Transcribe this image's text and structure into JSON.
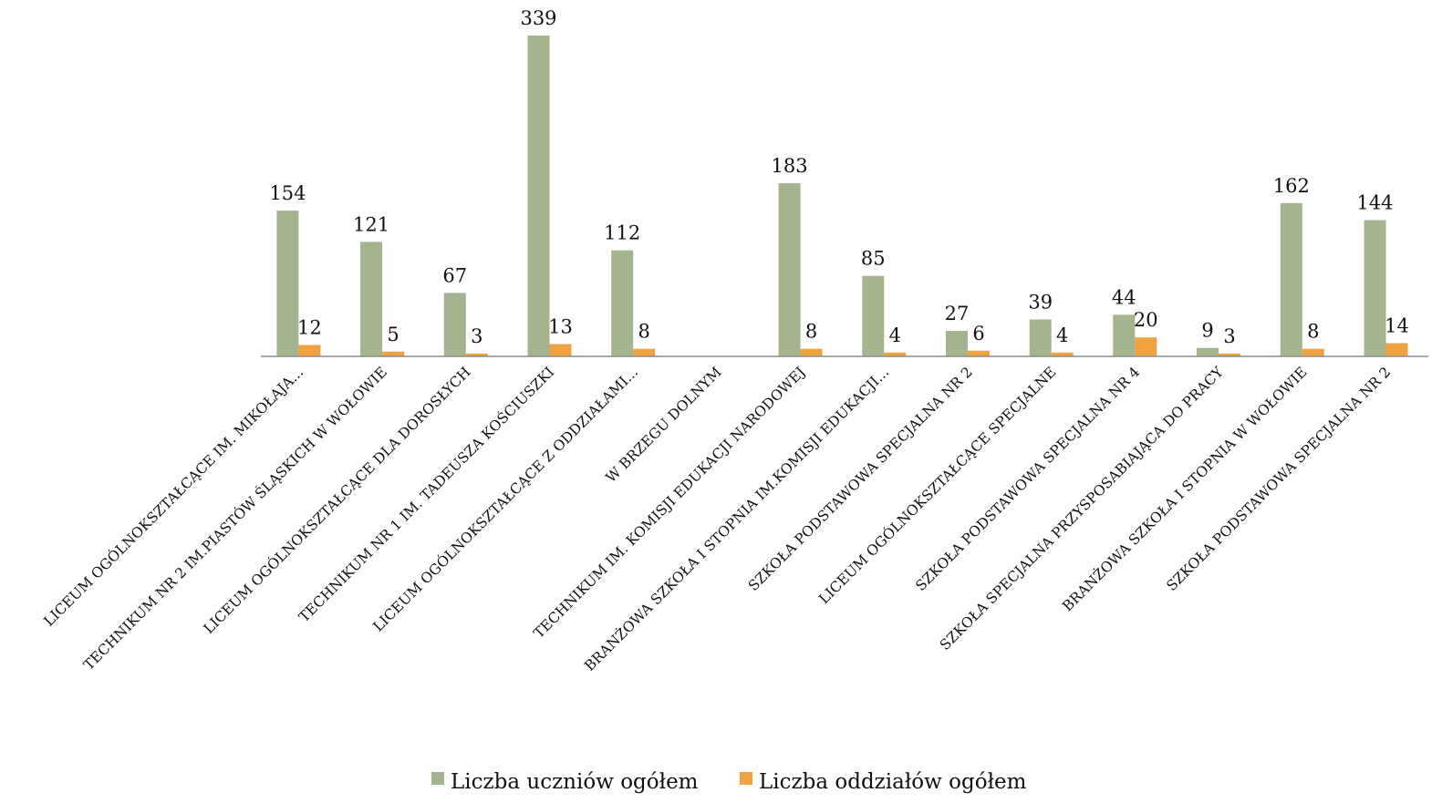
{
  "chart_data": {
    "type": "bar",
    "categories": [
      "LICEUM OGÓLNOKSZTAŁCĄCE IM. MIKOŁAJA...",
      "TECHNIKUM NR 2 IM.PIASTÓW ŚLĄSKICH W WOŁOWIE",
      "LICEUM OGÓLNOKSZTAŁCĄCE DLA DOROSŁYCH",
      "TECHNIKUM NR 1 IM. TADEUSZA KOŚCIUSZKI",
      "LICEUM OGÓLNOKSZTAŁCĄCE Z ODDZIAŁAMI...",
      "W BRZEGU DOLNYM",
      "TECHNIKUM IM. KOMISJI EDUKACJI NARODOWEJ",
      "BRANŻOWA SZKOŁA I STOPNIA IM.KOMISJI EDUKACJI...",
      "SZKOŁA PODSTAWOWA SPECJALNA NR 2",
      "LICEUM OGÓLNOKSZTAŁCĄCE SPECJALNE",
      "SZKOŁA PODSTAWOWA SPECJALNA NR 4",
      "SZKOŁA SPECJALNA PRZYSPOSABIAJĄCA DO PRACY",
      "BRANŻOWA SZKOŁA I STOPNIA W WOŁOWIE",
      "SZKOŁA PODSTAWOWA SPECJALNA NR 2"
    ],
    "series": [
      {
        "name": "Liczba uczniów ogółem",
        "color": "#a3b48f",
        "values": [
          154,
          121,
          67,
          339,
          112,
          null,
          183,
          85,
          27,
          39,
          44,
          9,
          162,
          144
        ]
      },
      {
        "name": "Liczba oddziałów ogółem",
        "color": "#f0a140",
        "values": [
          12,
          5,
          3,
          13,
          8,
          null,
          8,
          4,
          6,
          4,
          20,
          3,
          8,
          14
        ]
      }
    ],
    "ylim": [
      0,
      350
    ],
    "grid": false,
    "legend_position": "bottom"
  }
}
